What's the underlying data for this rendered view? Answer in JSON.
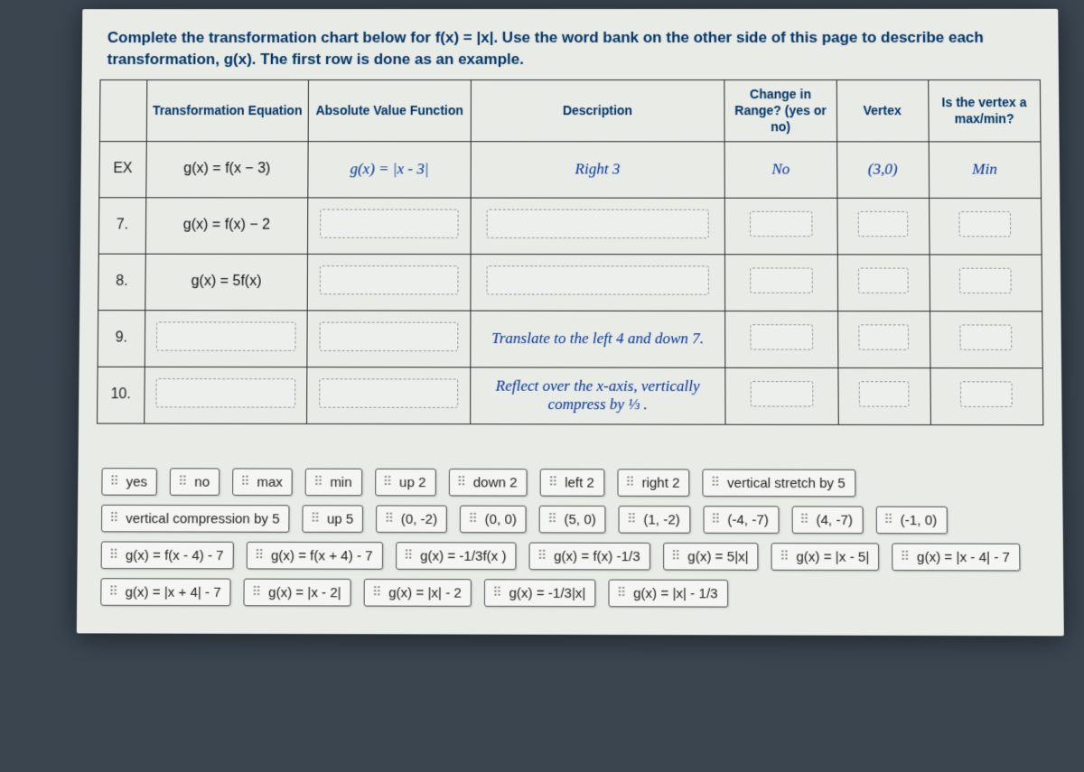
{
  "instructions": "Complete the transformation chart below for f(x) = |x|. Use the word bank on the other side of this page to describe each transformation, g(x). The first row is done as an example.",
  "headers": {
    "c0": "",
    "c1": "Transformation Equation",
    "c2": "Absolute Value Function",
    "c3": "Description",
    "c4": "Change in Range? (yes or no)",
    "c5": "Vertex",
    "c6": "Is the vertex a max/min?"
  },
  "rows": {
    "ex": {
      "num": "EX",
      "trans": "g(x) = f(x − 3)",
      "abs": "g(x) = |x - 3|",
      "desc": "Right 3",
      "range": "No",
      "vertex": "(3,0)",
      "maxmin": "Min"
    },
    "r7": {
      "num": "7.",
      "trans": "g(x) = f(x) − 2"
    },
    "r8": {
      "num": "8.",
      "trans": "g(x) = 5f(x)"
    },
    "r9": {
      "num": "9.",
      "desc": "Translate to the left 4 and down 7."
    },
    "r10": {
      "num": "10.",
      "desc": "Reflect over the x-axis, vertically compress by ⅓ ."
    }
  },
  "bank": {
    "t1": "yes",
    "t2": "no",
    "t3": "max",
    "t4": "min",
    "t5": "up 2",
    "t6": "down 2",
    "t7": "left 2",
    "t8": "right 2",
    "t9": "vertical stretch by 5",
    "t10": "vertical compression by 5",
    "t11": "up 5",
    "t12": "(0, -2)",
    "t13": "(0, 0)",
    "t14": "(5, 0)",
    "t15": "(1, -2)",
    "t16": "(-4, -7)",
    "t17": "(4, -7)",
    "t18": "(-1, 0)",
    "t19": "g(x) = f(x - 4) - 7",
    "t20": "g(x) = f(x + 4) - 7",
    "t21": "g(x) = -1/3f(x )",
    "t22": "g(x) = f(x) -1/3",
    "t23": "g(x) = 5|x|",
    "t24": "g(x) = |x - 5|",
    "t25": "g(x) = |x - 4| - 7",
    "t26": "g(x) = |x + 4| - 7",
    "t27": "g(x) = |x - 2|",
    "t28": "g(x) = |x| - 2",
    "t29": "g(x) = -1/3|x|",
    "t30": "g(x) = |x| - 1/3"
  }
}
